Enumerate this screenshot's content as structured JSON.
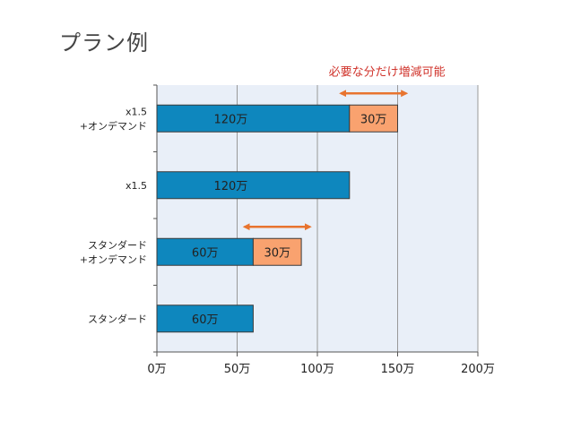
{
  "title": "プラン例",
  "annotation": {
    "text": "必要な分だけ増減可能",
    "color": "#d0342c",
    "arrow_color": "#e8742f"
  },
  "colors": {
    "base": "#0e87be",
    "extra": "#f9a26f",
    "plot_bg": "#e9eff8",
    "grid": "#999999"
  },
  "chart_data": {
    "type": "bar",
    "orientation": "horizontal",
    "stacked": true,
    "categories": [
      [
        "x1.5",
        "+オンデマンド"
      ],
      [
        "x1.5"
      ],
      [
        "スタンダード",
        "+オンデマンド"
      ],
      [
        "スタンダード"
      ]
    ],
    "series": [
      {
        "values": [
          120,
          120,
          60,
          60
        ],
        "labels": [
          "120万",
          "120万",
          "60万",
          "60万"
        ]
      },
      {
        "values": [
          30,
          0,
          30,
          0
        ],
        "labels": [
          "30万",
          "",
          "30万",
          ""
        ]
      }
    ],
    "xlim": [
      0,
      200
    ],
    "xticks": [
      0,
      50,
      100,
      150,
      200
    ],
    "xtick_labels": [
      "0万",
      "50万",
      "100万",
      "150万",
      "200万"
    ],
    "grid": true
  }
}
